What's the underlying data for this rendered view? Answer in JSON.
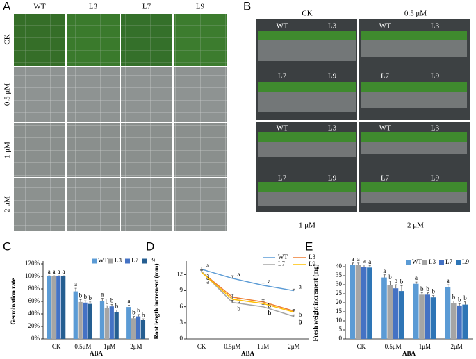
{
  "panel_a": {
    "letter": "A",
    "columns": [
      "WT",
      "L3",
      "L7",
      "L9"
    ],
    "rows": [
      "CK",
      "0.5 μM",
      "1 μM",
      "2 μM"
    ]
  },
  "panel_b": {
    "letter": "B",
    "genotypes": [
      "WT",
      "L3",
      "L7",
      "L9"
    ],
    "treatments": [
      "CK",
      "0.5 μM",
      "1 μM",
      "2 μM"
    ]
  },
  "chart_data": [
    {
      "type": "bar",
      "panel": "C",
      "y_label": "Germination rate",
      "x_label": "ABA",
      "categories": [
        "CK",
        "0.5μM",
        "1μM",
        "2μM"
      ],
      "ylim": [
        0,
        120
      ],
      "yticks": [
        {
          "value": 0,
          "label": "0%"
        },
        {
          "value": 20,
          "label": "20%"
        },
        {
          "value": 40,
          "label": "40%"
        },
        {
          "value": 60,
          "label": "60%"
        },
        {
          "value": 80,
          "label": "80%"
        },
        {
          "value": 100,
          "label": "100%"
        },
        {
          "value": 120,
          "label": "120%"
        }
      ],
      "series": [
        {
          "name": "WT",
          "color": "#5b9bd5",
          "values": [
            100,
            76,
            61,
            51
          ],
          "errors": [
            1,
            5,
            4,
            3
          ],
          "letters": [
            "a",
            "a",
            "a",
            "a"
          ]
        },
        {
          "name": "L3",
          "color": "#a5a5a5",
          "values": [
            100,
            59,
            50,
            33
          ],
          "errors": [
            1,
            4,
            3,
            3
          ],
          "letters": [
            "a",
            "b",
            "b",
            "b"
          ]
        },
        {
          "name": "L7",
          "color": "#4472c4",
          "values": [
            100,
            58,
            52,
            36
          ],
          "errors": [
            1,
            3,
            3,
            3
          ],
          "letters": [
            "a",
            "b",
            "b",
            "b"
          ]
        },
        {
          "name": "L9",
          "color": "#255e91",
          "values": [
            100,
            56,
            43,
            30
          ],
          "errors": [
            1,
            3,
            3,
            2
          ],
          "letters": [
            "a",
            "b",
            "b",
            "b"
          ]
        }
      ]
    },
    {
      "type": "line",
      "panel": "D",
      "y_label": "Root length increment (mm)",
      "x_label": "ABA",
      "categories": [
        "CK",
        "0.5μM",
        "1μM",
        "2μM"
      ],
      "ylim": [
        0,
        14
      ],
      "yticks": [
        0,
        3,
        6,
        9,
        12
      ],
      "series": [
        {
          "name": "WT",
          "color": "#5b9bd5",
          "values": [
            13.0,
            11.3,
            10.0,
            9.0
          ],
          "errors": [
            0.4,
            0.5,
            0.4,
            0.3
          ],
          "letters": [
            "a",
            "a",
            "a",
            "a"
          ]
        },
        {
          "name": "L3",
          "color": "#ed7d31",
          "values": [
            12.5,
            7.8,
            6.9,
            5.2
          ],
          "errors": [
            0.4,
            0.5,
            0.4,
            0.3
          ],
          "letters": [
            "a",
            "b",
            "b",
            "b"
          ]
        },
        {
          "name": "L7",
          "color": "#a5a5a5",
          "values": [
            12.6,
            6.8,
            6.0,
            4.2
          ],
          "errors": [
            0.4,
            0.4,
            0.4,
            0.3
          ],
          "letters": [
            "a",
            "b",
            "b",
            "b"
          ]
        },
        {
          "name": "L9",
          "color": "#ffc000",
          "values": [
            12.4,
            7.4,
            6.6,
            5.0
          ],
          "errors": [
            0.4,
            0.4,
            0.4,
            0.3
          ],
          "letters": [
            "a",
            "b",
            "b",
            "b"
          ]
        }
      ]
    },
    {
      "type": "bar",
      "panel": "E",
      "y_label": "Fresh weight increment (mg)",
      "x_label": "ABA",
      "categories": [
        "CK",
        "0.5μM",
        "1μM",
        "2μM"
      ],
      "ylim": [
        0,
        40
      ],
      "yticks": [
        0,
        5,
        10,
        15,
        20,
        25,
        30,
        35,
        40
      ],
      "series": [
        {
          "name": "WT",
          "color": "#5b9bd5",
          "values": [
            41,
            34,
            30.5,
            28.5
          ],
          "errors": [
            1,
            1.5,
            1,
            1.5
          ],
          "letters": [
            "a",
            "a",
            "a",
            "a"
          ]
        },
        {
          "name": "L3",
          "color": "#a5a5a5",
          "values": [
            41,
            30,
            24.5,
            20
          ],
          "errors": [
            1,
            2,
            1,
            1
          ],
          "letters": [
            "a",
            "b",
            "b",
            "b"
          ]
        },
        {
          "name": "L7",
          "color": "#4472c4",
          "values": [
            40,
            28,
            24.5,
            18.5
          ],
          "errors": [
            1,
            2,
            1,
            1
          ],
          "letters": [
            "a",
            "b",
            "b",
            "b"
          ]
        },
        {
          "name": "L9",
          "color": "#2e75b6",
          "values": [
            39.5,
            26.5,
            23,
            19
          ],
          "errors": [
            1,
            3,
            1,
            1.5
          ],
          "letters": [
            "a",
            "b",
            "b",
            "b"
          ]
        }
      ]
    }
  ]
}
